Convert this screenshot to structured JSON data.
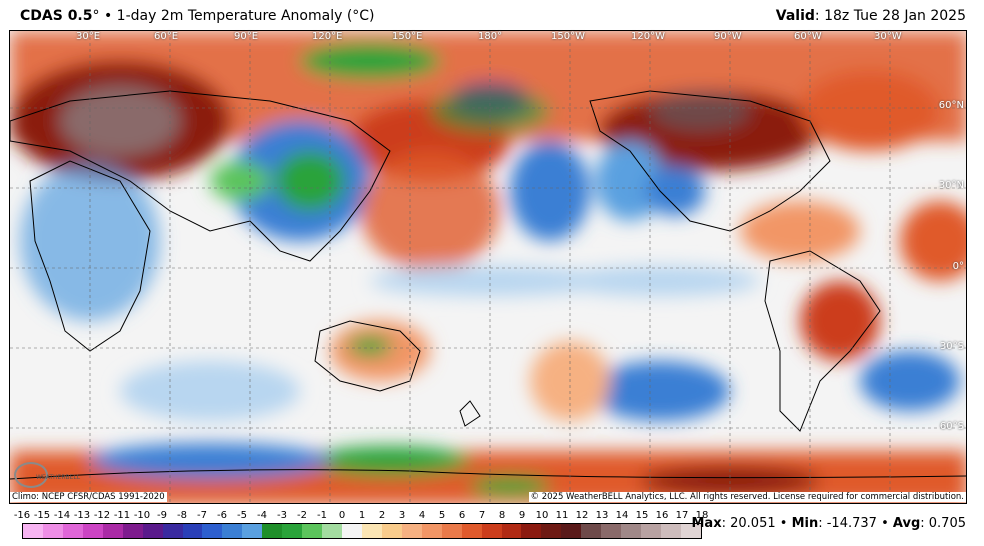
{
  "header": {
    "product": "CDAS 0.5",
    "product_deg": "°",
    "separator": "•",
    "title": "1-day 2m Temperature Anomaly (°C)",
    "valid_label": "Valid",
    "valid_value": ": 18z Tue 28 Jan 2025"
  },
  "map": {
    "projection": "equirectangular, Pacific-centered",
    "lon_labels": [
      "30°E",
      "60°E",
      "90°E",
      "120°E",
      "150°E",
      "180°",
      "150°W",
      "120°W",
      "90°W",
      "60°W",
      "30°W"
    ],
    "lat_labels": [
      "60°N",
      "30°N",
      "0°",
      "30°S",
      "60°S"
    ],
    "colors": {
      "strong_warm": "#8b1a10",
      "warm": "#e05a2c",
      "mild_warm": "#f6b182",
      "neutral": "#f4f4f4",
      "mild_cool": "#b8d6f0",
      "cool": "#3b7fd4",
      "cold": "#2aa33a",
      "very_cold": "#7a2bbf",
      "extreme_warm": "#b89e9e"
    }
  },
  "footer": {
    "climo": "Climo: NCEP CFSR/CDAS 1991-2020",
    "copyright": "© 2025 WeatherBELL Analytics, LLC. All rights reserved. License required for commercial distribution.",
    "logo_text": "WEATHERBELL"
  },
  "colorbar": {
    "ticks": [
      "-16",
      "-15",
      "-14",
      "-13",
      "-12",
      "-11",
      "-10",
      "-9",
      "-8",
      "-7",
      "-6",
      "-5",
      "-4",
      "-3",
      "-2",
      "-1",
      "0",
      "1",
      "2",
      "3",
      "4",
      "5",
      "6",
      "7",
      "8",
      "9",
      "10",
      "11",
      "12",
      "13",
      "14",
      "15",
      "16",
      "17",
      "18"
    ],
    "colors": [
      "#f7b4f2",
      "#ee8ee6",
      "#e066d8",
      "#cc44c4",
      "#aa2aa6",
      "#7e1b8e",
      "#5a1a8c",
      "#3a2aa0",
      "#2a3fb8",
      "#2d5fcf",
      "#3b7fd4",
      "#5aa0e0",
      "#1f8f2a",
      "#2aa33a",
      "#5cc45c",
      "#a3dca0",
      "#f4f4f4",
      "#fbe5b4",
      "#f9cc8c",
      "#f6b182",
      "#f29666",
      "#ea7a4a",
      "#e05a2c",
      "#cc3d1c",
      "#b12a14",
      "#8b1a10",
      "#6e1a14",
      "#5a1a1a",
      "#6e4a4a",
      "#8a6a6a",
      "#a08888",
      "#b8a2a2",
      "#cdbcbc",
      "#e0d4d4"
    ],
    "range_min": -16,
    "range_max": 18
  },
  "stats": {
    "max_label": "Max",
    "max_value": ": 20.051",
    "min_label": "Min",
    "min_value": ": -14.737",
    "avg_label": "Avg",
    "avg_value": ": 0.705",
    "sep": "•"
  }
}
